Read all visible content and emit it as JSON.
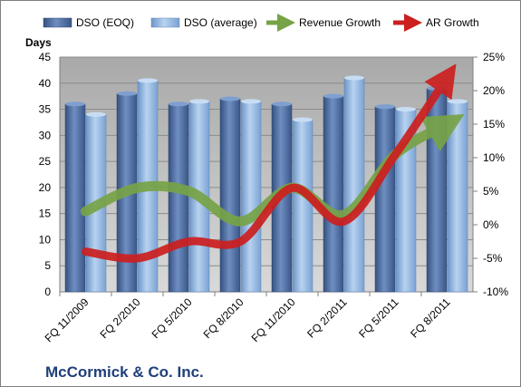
{
  "chart_data": {
    "type": "bar",
    "title": "",
    "company": "McCormick & Co. Inc.",
    "ylabel": "Days",
    "ylim": [
      0,
      45
    ],
    "y_ticks": [
      0,
      5,
      10,
      15,
      20,
      25,
      30,
      35,
      40,
      45
    ],
    "y2lim": [
      -10,
      25
    ],
    "y2_ticks": [
      "-10%",
      "-5%",
      "0%",
      "5%",
      "10%",
      "15%",
      "20%",
      "25%"
    ],
    "y2_tick_values": [
      -10,
      -5,
      0,
      5,
      10,
      15,
      20,
      25
    ],
    "categories": [
      "FQ 11/2009",
      "FQ 2/2010",
      "FQ 5/2010",
      "FQ 8/2010",
      "FQ 11/2010",
      "FQ 2/2011",
      "FQ 5/2011",
      "FQ 8/2011"
    ],
    "series": [
      {
        "name": "DSO (EOQ)",
        "kind": "bar",
        "values": [
          36,
          38,
          36,
          37,
          36,
          37.5,
          35.5,
          39
        ]
      },
      {
        "name": "DSO (average)",
        "kind": "bar",
        "values": [
          34,
          40.5,
          36.5,
          36.5,
          33,
          41,
          35,
          36.5
        ]
      },
      {
        "name": "Revenue Growth",
        "kind": "arrow-line",
        "axis": "y2",
        "values": [
          2,
          5.5,
          5,
          0.5,
          5.5,
          1.5,
          10.5,
          15
        ]
      },
      {
        "name": "AR Growth",
        "kind": "arrow-line",
        "axis": "y2",
        "values": [
          -4,
          -5,
          -2.5,
          -2.5,
          5.5,
          0.5,
          10.5,
          22
        ]
      }
    ],
    "colors": {
      "bar_eoq": "#4f6fa3",
      "bar_avg": "#8db3e0",
      "revenue": "#77a347",
      "ar": "#cc1f1f",
      "plot_bg": "#c0c0c0"
    },
    "legend_position": "top",
    "grid": true
  }
}
